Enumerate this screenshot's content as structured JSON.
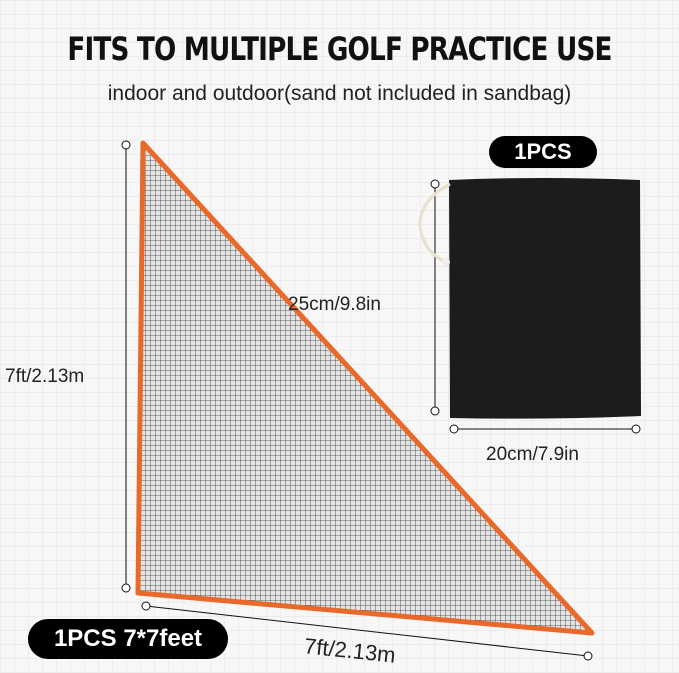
{
  "title": "FITS TO MULTIPLE GOLF PRACTICE USE",
  "subtitle": "indoor and outdoor(sand not included in sandbag)",
  "badges": {
    "bag": "1PCS",
    "net": "1PCS 7*7feet"
  },
  "dimensions": {
    "net_height": "7ft/2.13m",
    "net_width": "7ft/2.13m",
    "bag_height": "25cm/9.8in",
    "bag_width": "20cm/7.9in"
  },
  "colors": {
    "net_border": "#e8692a",
    "bag": "#1c1c1c",
    "mesh": "#333333"
  }
}
